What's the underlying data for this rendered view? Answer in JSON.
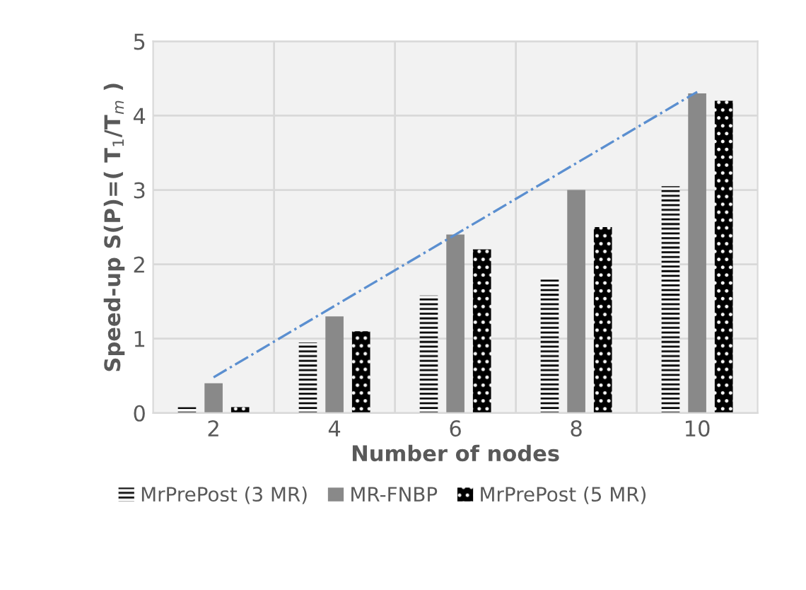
{
  "chart_data": {
    "type": "bar",
    "xlabel": "Number of nodes",
    "ylabel": "Speed-up S(P)=( T$_{1}$/T$_{m}$ )",
    "categories": [
      "2",
      "4",
      "6",
      "8",
      "10"
    ],
    "series": [
      {
        "name": "MrPrePost (3 MR)",
        "color": "#000000",
        "values": [
          0.08,
          0.95,
          1.58,
          1.82,
          3.05
        ]
      },
      {
        "name": "MR-FNBP",
        "color": "#898989",
        "values": [
          0.4,
          1.3,
          2.4,
          3.0,
          4.3
        ]
      },
      {
        "name": "MrPrePost (5 MR)",
        "color": "#000000",
        "values": [
          0.08,
          1.1,
          2.2,
          2.5,
          4.2
        ]
      },
      {
        "type": "line",
        "color": "#5b8fd0",
        "line_style": "dashdot",
        "values": [
          0.48,
          1.44,
          2.4,
          3.36,
          4.32
        ]
      }
    ],
    "ylim": [
      0,
      5
    ],
    "yticks": [
      0,
      1,
      2,
      3,
      4,
      5
    ],
    "grid": true,
    "legend": "bottom"
  }
}
